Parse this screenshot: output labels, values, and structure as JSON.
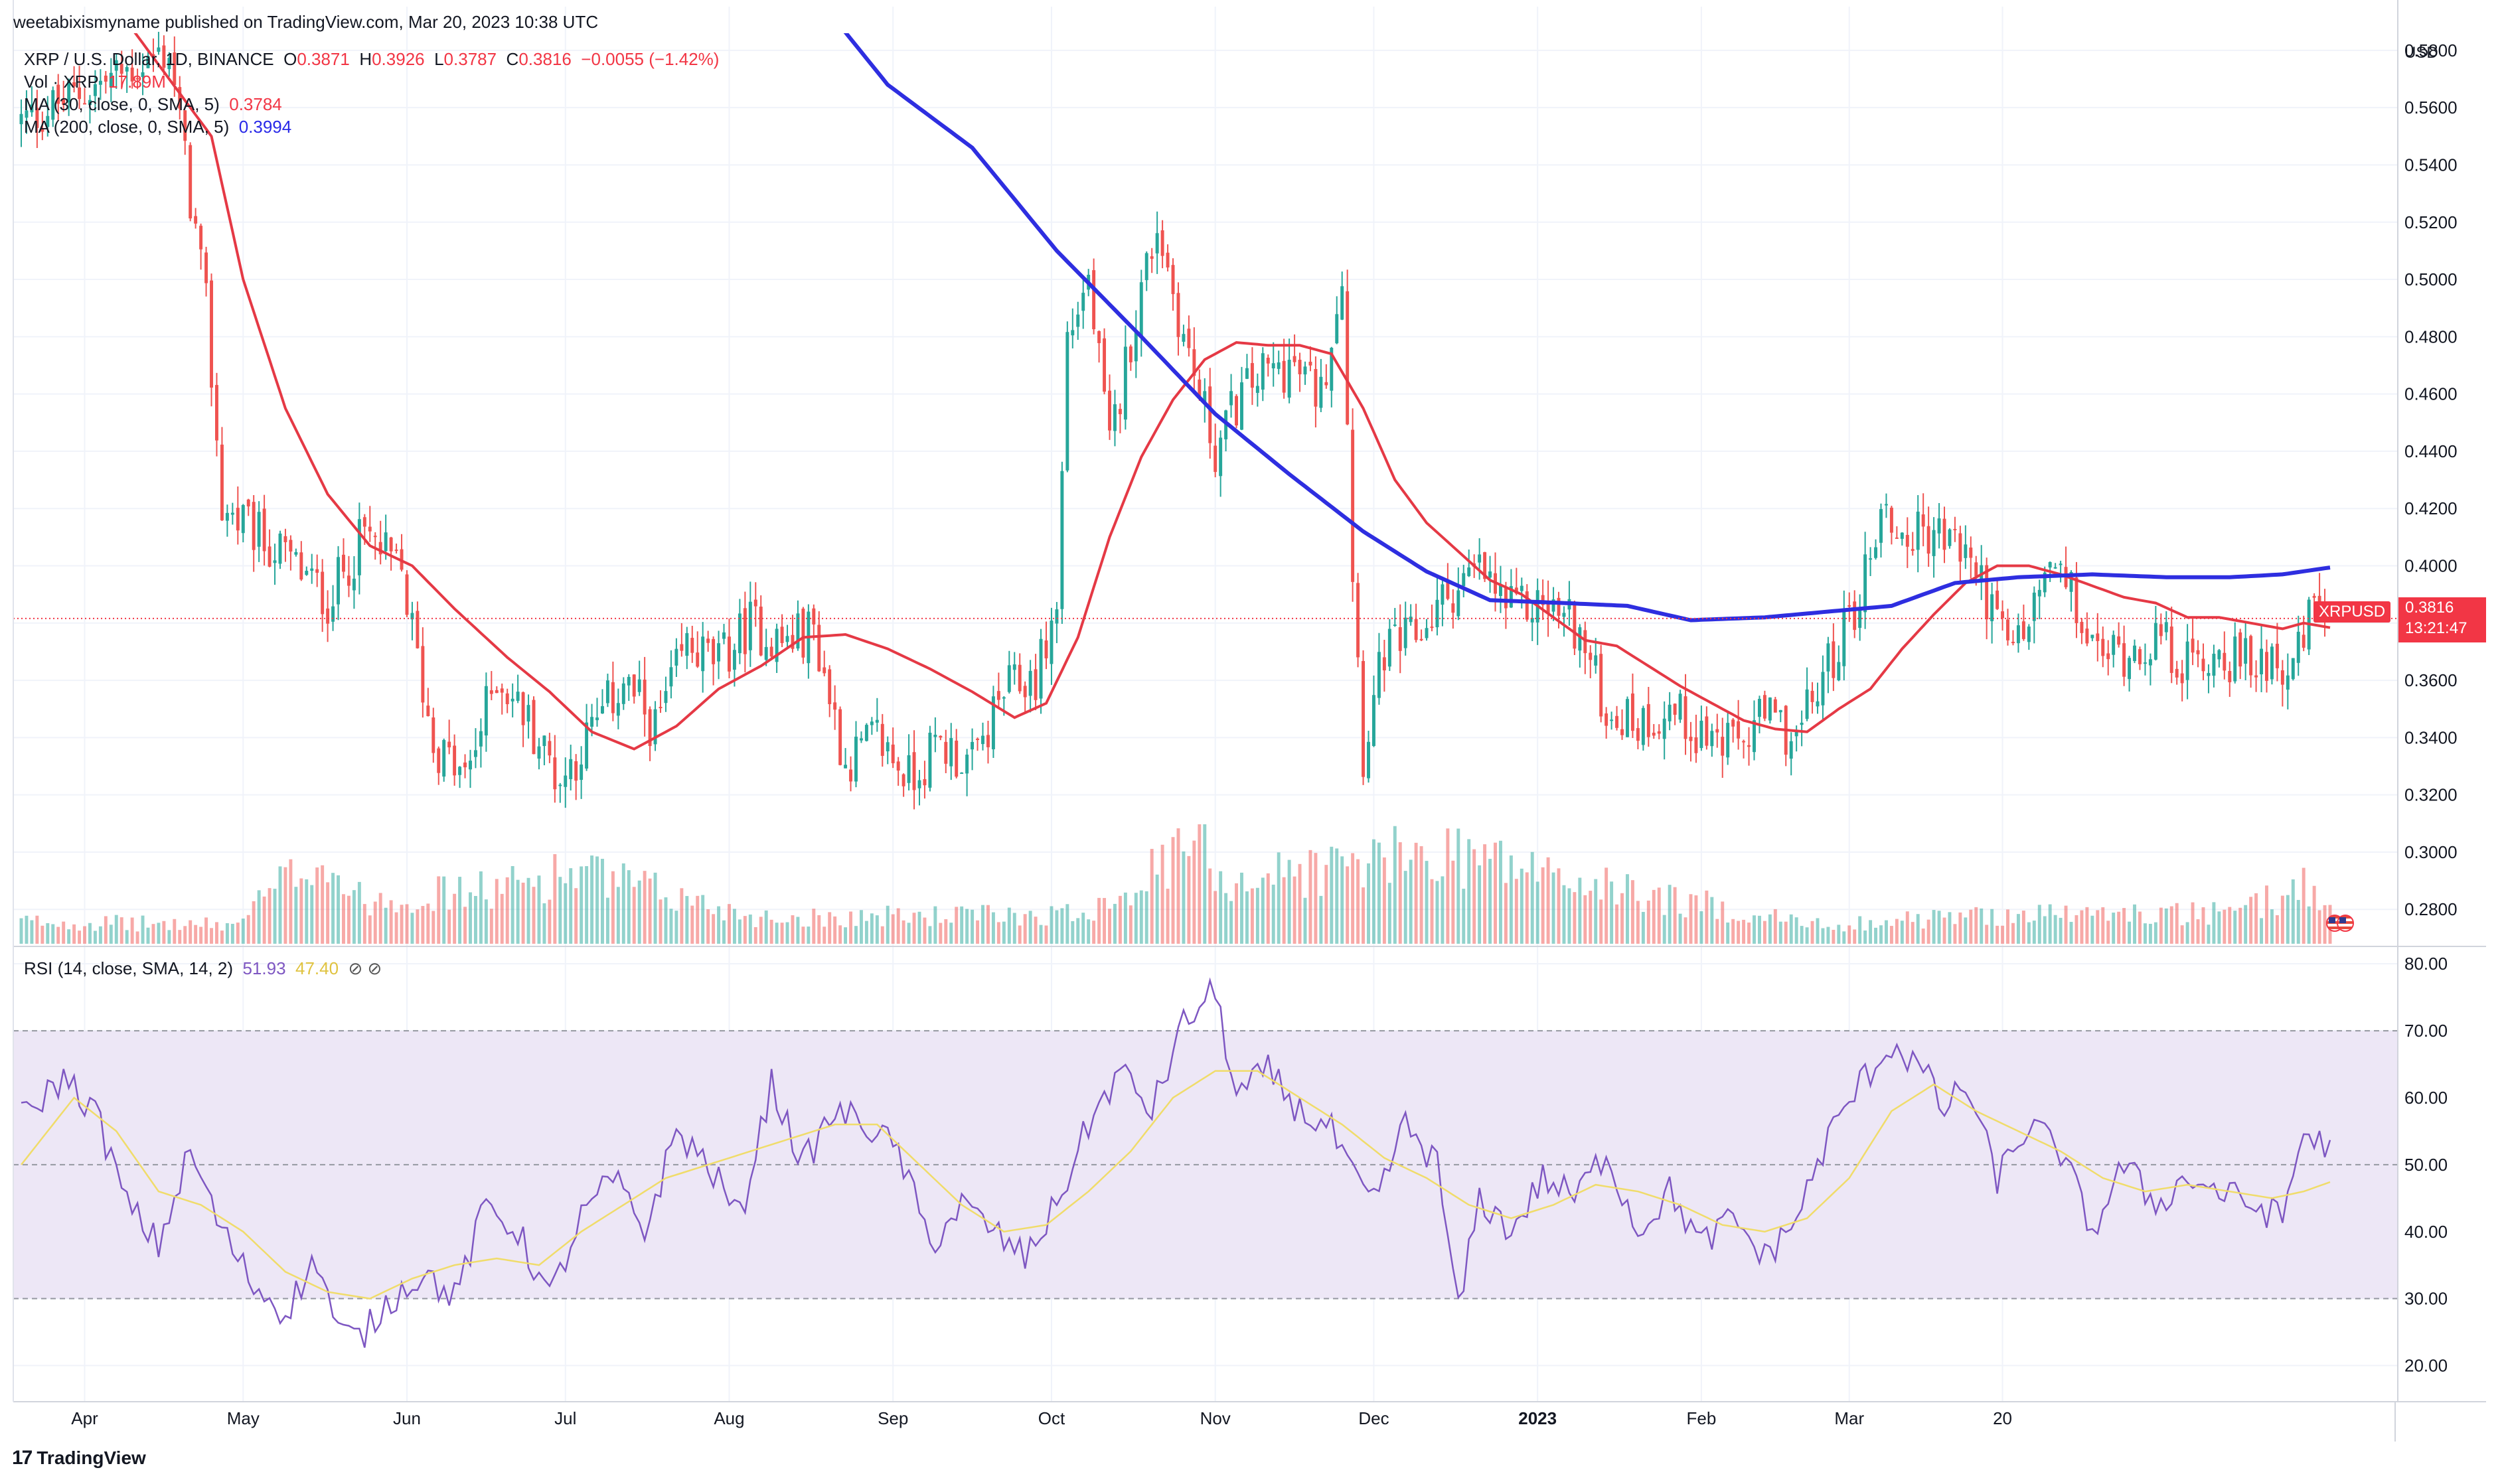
{
  "header": {
    "published": "weetabixismyname published on TradingView.com, Mar 20, 2023 10:38 UTC"
  },
  "legend": {
    "symbol": "XRP / U.S. Dollar, 1D, BINANCE",
    "o_label": "O",
    "o_value": "0.3871",
    "h_label": "H",
    "h_value": "0.3926",
    "l_label": "L",
    "l_value": "0.3787",
    "c_label": "C",
    "c_value": "0.3816",
    "change": "−0.0055 (−1.42%)",
    "vol_label": "Vol · XRP",
    "vol_value": "17.89M",
    "ma30_label": "MA (30, close, 0, SMA, 5)",
    "ma30_value": "0.3784",
    "ma200_label": "MA (200, close, 0, SMA, 5)",
    "ma200_value": "0.3994"
  },
  "rsi_legend": {
    "label": "RSI (14, close, SMA, 14, 2)",
    "rsi_value": "51.93",
    "sma_value": "47.40",
    "icons": "⊘ ⊘"
  },
  "price_tag": {
    "symbol": "XRPUSD",
    "price": "0.3816",
    "countdown": "13:21:47"
  },
  "axis_currency": "USD",
  "brand": {
    "logo": "17",
    "name": "TradingView"
  },
  "colors": {
    "up": "#26a69a",
    "down": "#ef5350",
    "ma30": "#e53945",
    "ma200": "#2e2ee0",
    "rsi": "#7e57c2",
    "rsi_sma": "#f0dc6a",
    "rsi_band": "#ede7f6"
  },
  "chart_data": {
    "type": "candlestick",
    "x_ticks": [
      "Apr",
      "May",
      "Jun",
      "Jul",
      "Aug",
      "Sep",
      "Oct",
      "Nov",
      "Dec",
      "2023",
      "Feb",
      "Mar",
      "20"
    ],
    "y_ticks": [
      "0.2800",
      "0.3000",
      "0.3200",
      "0.3400",
      "0.3600",
      "0.3800",
      "0.4000",
      "0.4200",
      "0.4400",
      "0.4600",
      "0.4800",
      "0.5000",
      "0.5200",
      "0.5400",
      "0.5600",
      "0.5800"
    ],
    "rsi_ticks": [
      "20.00",
      "30.00",
      "40.00",
      "50.00",
      "60.00",
      "70.00",
      "80.00"
    ],
    "ylim": [
      0.268,
      0.586
    ],
    "rsi_ylim": [
      15,
      82
    ],
    "rsi_bands": [
      30,
      70
    ],
    "last_price": 0.3816,
    "price_path": [
      [
        0,
        0.555
      ],
      [
        28,
        0.58
      ],
      [
        35,
        0.49
      ],
      [
        38,
        0.42
      ],
      [
        45,
        0.41
      ],
      [
        52,
        0.4
      ],
      [
        58,
        0.388
      ],
      [
        65,
        0.411
      ],
      [
        72,
        0.397
      ],
      [
        78,
        0.338
      ],
      [
        84,
        0.325
      ],
      [
        90,
        0.362
      ],
      [
        96,
        0.346
      ],
      [
        102,
        0.325
      ],
      [
        108,
        0.342
      ],
      [
        114,
        0.36
      ],
      [
        120,
        0.343
      ],
      [
        126,
        0.372
      ],
      [
        132,
        0.366
      ],
      [
        138,
        0.38
      ],
      [
        144,
        0.373
      ],
      [
        150,
        0.378
      ],
      [
        156,
        0.331
      ],
      [
        162,
        0.34
      ],
      [
        168,
        0.326
      ],
      [
        174,
        0.338
      ],
      [
        180,
        0.33
      ],
      [
        186,
        0.356
      ],
      [
        192,
        0.361
      ],
      [
        196,
        0.385
      ],
      [
        198,
        0.48
      ],
      [
        202,
        0.5
      ],
      [
        206,
        0.44
      ],
      [
        210,
        0.48
      ],
      [
        215,
        0.52
      ],
      [
        220,
        0.48
      ],
      [
        226,
        0.44
      ],
      [
        230,
        0.457
      ],
      [
        234,
        0.466
      ],
      [
        240,
        0.47
      ],
      [
        246,
        0.46
      ],
      [
        250,
        0.504
      ],
      [
        252,
        0.4
      ],
      [
        254,
        0.335
      ],
      [
        258,
        0.37
      ],
      [
        264,
        0.375
      ],
      [
        270,
        0.39
      ],
      [
        276,
        0.398
      ],
      [
        282,
        0.384
      ],
      [
        288,
        0.387
      ],
      [
        294,
        0.38
      ],
      [
        300,
        0.35
      ],
      [
        306,
        0.345
      ],
      [
        312,
        0.35
      ],
      [
        318,
        0.342
      ],
      [
        324,
        0.336
      ],
      [
        330,
        0.347
      ],
      [
        336,
        0.34
      ],
      [
        342,
        0.365
      ],
      [
        348,
        0.39
      ],
      [
        352,
        0.42
      ],
      [
        356,
        0.41
      ],
      [
        362,
        0.412
      ],
      [
        368,
        0.405
      ],
      [
        372,
        0.39
      ],
      [
        376,
        0.37
      ],
      [
        380,
        0.38
      ],
      [
        384,
        0.4
      ],
      [
        388,
        0.389
      ],
      [
        392,
        0.37
      ],
      [
        398,
        0.37
      ],
      [
        404,
        0.375
      ],
      [
        410,
        0.365
      ],
      [
        416,
        0.37
      ],
      [
        422,
        0.365
      ],
      [
        426,
        0.37
      ],
      [
        430,
        0.362
      ],
      [
        434,
        0.387
      ],
      [
        437,
        0.3816
      ]
    ],
    "ma30": [
      [
        20,
        0.59
      ],
      [
        36,
        0.55
      ],
      [
        42,
        0.5
      ],
      [
        50,
        0.455
      ],
      [
        58,
        0.425
      ],
      [
        66,
        0.407
      ],
      [
        74,
        0.4
      ],
      [
        82,
        0.385
      ],
      [
        92,
        0.368
      ],
      [
        100,
        0.356
      ],
      [
        108,
        0.342
      ],
      [
        116,
        0.336
      ],
      [
        124,
        0.344
      ],
      [
        132,
        0.357
      ],
      [
        140,
        0.365
      ],
      [
        148,
        0.375
      ],
      [
        156,
        0.376
      ],
      [
        164,
        0.371
      ],
      [
        172,
        0.364
      ],
      [
        180,
        0.356
      ],
      [
        188,
        0.347
      ],
      [
        194,
        0.352
      ],
      [
        200,
        0.375
      ],
      [
        206,
        0.41
      ],
      [
        212,
        0.438
      ],
      [
        218,
        0.458
      ],
      [
        224,
        0.472
      ],
      [
        230,
        0.478
      ],
      [
        236,
        0.477
      ],
      [
        242,
        0.477
      ],
      [
        248,
        0.474
      ],
      [
        254,
        0.455
      ],
      [
        260,
        0.43
      ],
      [
        266,
        0.415
      ],
      [
        272,
        0.405
      ],
      [
        278,
        0.395
      ],
      [
        284,
        0.39
      ],
      [
        290,
        0.382
      ],
      [
        296,
        0.374
      ],
      [
        302,
        0.372
      ],
      [
        308,
        0.365
      ],
      [
        314,
        0.358
      ],
      [
        320,
        0.352
      ],
      [
        326,
        0.346
      ],
      [
        332,
        0.343
      ],
      [
        338,
        0.342
      ],
      [
        344,
        0.35
      ],
      [
        350,
        0.357
      ],
      [
        356,
        0.371
      ],
      [
        362,
        0.383
      ],
      [
        368,
        0.394
      ],
      [
        374,
        0.4
      ],
      [
        380,
        0.4
      ],
      [
        386,
        0.397
      ],
      [
        392,
        0.393
      ],
      [
        398,
        0.389
      ],
      [
        404,
        0.387
      ],
      [
        410,
        0.382
      ],
      [
        416,
        0.382
      ],
      [
        422,
        0.38
      ],
      [
        428,
        0.378
      ],
      [
        432,
        0.38
      ],
      [
        437,
        0.3784
      ]
    ],
    "ma200": [
      [
        150,
        0.6
      ],
      [
        164,
        0.568
      ],
      [
        180,
        0.546
      ],
      [
        196,
        0.51
      ],
      [
        212,
        0.48
      ],
      [
        226,
        0.453
      ],
      [
        240,
        0.432
      ],
      [
        254,
        0.412
      ],
      [
        266,
        0.398
      ],
      [
        278,
        0.388
      ],
      [
        292,
        0.387
      ],
      [
        304,
        0.386
      ],
      [
        316,
        0.381
      ],
      [
        330,
        0.382
      ],
      [
        342,
        0.384
      ],
      [
        354,
        0.386
      ],
      [
        366,
        0.394
      ],
      [
        378,
        0.396
      ],
      [
        392,
        0.397
      ],
      [
        406,
        0.396
      ],
      [
        418,
        0.396
      ],
      [
        428,
        0.397
      ],
      [
        437,
        0.3994
      ]
    ],
    "volume_profile": [
      [
        0,
        1.2
      ],
      [
        40,
        1.0
      ],
      [
        56,
        4.8
      ],
      [
        64,
        2.4
      ],
      [
        90,
        2.9
      ],
      [
        104,
        3.9
      ],
      [
        140,
        1.4
      ],
      [
        200,
        1.6
      ],
      [
        218,
        4.4
      ],
      [
        222,
        6.0
      ],
      [
        228,
        3.4
      ],
      [
        272,
        5.0
      ],
      [
        296,
        3.2
      ],
      [
        340,
        1.0
      ],
      [
        376,
        1.6
      ],
      [
        420,
        1.6
      ],
      [
        432,
        3.2
      ],
      [
        437,
        1.8
      ]
    ],
    "rsi_path": [
      [
        0,
        57
      ],
      [
        8,
        63
      ],
      [
        14,
        58
      ],
      [
        20,
        44
      ],
      [
        26,
        38
      ],
      [
        32,
        52
      ],
      [
        38,
        40
      ],
      [
        44,
        32
      ],
      [
        50,
        28
      ],
      [
        56,
        36
      ],
      [
        60,
        25
      ],
      [
        64,
        24
      ],
      [
        70,
        30
      ],
      [
        76,
        34
      ],
      [
        82,
        30
      ],
      [
        88,
        44
      ],
      [
        94,
        40
      ],
      [
        100,
        30
      ],
      [
        106,
        42
      ],
      [
        112,
        48
      ],
      [
        118,
        40
      ],
      [
        124,
        55
      ],
      [
        130,
        50
      ],
      [
        136,
        42
      ],
      [
        142,
        62
      ],
      [
        148,
        50
      ],
      [
        154,
        58
      ],
      [
        160,
        56
      ],
      [
        166,
        52
      ],
      [
        172,
        38
      ],
      [
        178,
        44
      ],
      [
        184,
        40
      ],
      [
        190,
        36
      ],
      [
        196,
        44
      ],
      [
        202,
        56
      ],
      [
        208,
        64
      ],
      [
        214,
        58
      ],
      [
        220,
        71
      ],
      [
        226,
        76
      ],
      [
        230,
        60
      ],
      [
        236,
        64
      ],
      [
        242,
        58
      ],
      [
        248,
        55
      ],
      [
        252,
        48
      ],
      [
        256,
        44
      ],
      [
        262,
        56
      ],
      [
        268,
        50
      ],
      [
        272,
        28
      ],
      [
        276,
        45
      ],
      [
        282,
        40
      ],
      [
        288,
        48
      ],
      [
        294,
        45
      ],
      [
        300,
        52
      ],
      [
        306,
        40
      ],
      [
        312,
        46
      ],
      [
        318,
        38
      ],
      [
        324,
        42
      ],
      [
        330,
        36
      ],
      [
        336,
        42
      ],
      [
        342,
        54
      ],
      [
        348,
        62
      ],
      [
        354,
        68
      ],
      [
        360,
        64
      ],
      [
        364,
        58
      ],
      [
        368,
        62
      ],
      [
        374,
        48
      ],
      [
        380,
        56
      ],
      [
        386,
        52
      ],
      [
        392,
        40
      ],
      [
        398,
        50
      ],
      [
        404,
        44
      ],
      [
        410,
        48
      ],
      [
        416,
        46
      ],
      [
        422,
        44
      ],
      [
        428,
        42
      ],
      [
        432,
        55
      ],
      [
        437,
        52
      ]
    ],
    "rsi_sma": [
      [
        0,
        50
      ],
      [
        10,
        60
      ],
      [
        18,
        55
      ],
      [
        26,
        46
      ],
      [
        34,
        44
      ],
      [
        42,
        40
      ],
      [
        50,
        34
      ],
      [
        58,
        31
      ],
      [
        66,
        30
      ],
      [
        74,
        33
      ],
      [
        82,
        35
      ],
      [
        90,
        36
      ],
      [
        98,
        35
      ],
      [
        106,
        40
      ],
      [
        114,
        44
      ],
      [
        122,
        48
      ],
      [
        130,
        50
      ],
      [
        138,
        52
      ],
      [
        146,
        54
      ],
      [
        154,
        56
      ],
      [
        162,
        56
      ],
      [
        170,
        50
      ],
      [
        178,
        44
      ],
      [
        186,
        40
      ],
      [
        194,
        41
      ],
      [
        202,
        46
      ],
      [
        210,
        52
      ],
      [
        218,
        60
      ],
      [
        226,
        64
      ],
      [
        234,
        64
      ],
      [
        242,
        60
      ],
      [
        250,
        56
      ],
      [
        258,
        51
      ],
      [
        266,
        48
      ],
      [
        274,
        44
      ],
      [
        282,
        42
      ],
      [
        290,
        44
      ],
      [
        298,
        47
      ],
      [
        306,
        46
      ],
      [
        314,
        44
      ],
      [
        322,
        41
      ],
      [
        330,
        40
      ],
      [
        338,
        42
      ],
      [
        346,
        48
      ],
      [
        354,
        58
      ],
      [
        362,
        62
      ],
      [
        370,
        58
      ],
      [
        378,
        55
      ],
      [
        386,
        52
      ],
      [
        394,
        48
      ],
      [
        402,
        46
      ],
      [
        410,
        47
      ],
      [
        418,
        46
      ],
      [
        426,
        45
      ],
      [
        432,
        46
      ],
      [
        437,
        47.4
      ]
    ]
  }
}
